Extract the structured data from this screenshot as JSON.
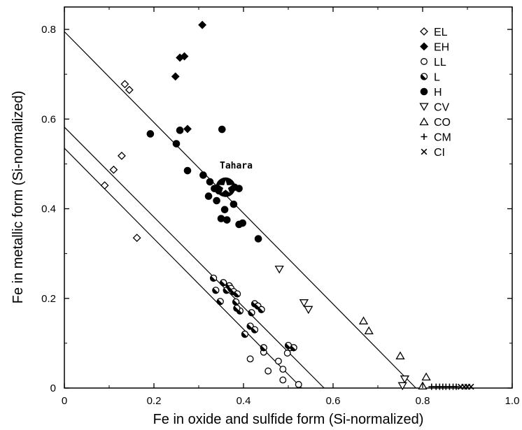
{
  "chart_data": {
    "type": "scatter",
    "xlabel": "Fe in oxide and sulfide form (Si-normalized)",
    "ylabel": "Fe in metallic form (Si-normalized)",
    "xlim": [
      0,
      1.0
    ],
    "ylim": [
      0,
      0.85
    ],
    "x_ticks": [
      0,
      0.2,
      0.4,
      0.6,
      0.8,
      1.0
    ],
    "x_tick_labels": [
      "0",
      "0.2",
      "0.4",
      "0.6",
      "0.8",
      "1.0"
    ],
    "y_ticks": [
      0,
      0.2,
      0.4,
      0.6,
      0.8
    ],
    "y_tick_labels": [
      "0",
      "0.2",
      "0.4",
      "0.6",
      "0.8"
    ],
    "grid": false,
    "legend_position": "top-right",
    "series": [
      {
        "name": "EL",
        "marker": "diamond-open",
        "points": [
          [
            0.135,
            0.678
          ],
          [
            0.145,
            0.665
          ],
          [
            0.128,
            0.518
          ],
          [
            0.11,
            0.487
          ],
          [
            0.09,
            0.452
          ],
          [
            0.162,
            0.335
          ]
        ]
      },
      {
        "name": "EH",
        "marker": "diamond-filled",
        "points": [
          [
            0.308,
            0.81
          ],
          [
            0.268,
            0.74
          ],
          [
            0.258,
            0.737
          ],
          [
            0.248,
            0.695
          ],
          [
            0.275,
            0.578
          ]
        ]
      },
      {
        "name": "LL",
        "marker": "circle-open",
        "points": [
          [
            0.415,
            0.065
          ],
          [
            0.445,
            0.08
          ],
          [
            0.455,
            0.038
          ],
          [
            0.478,
            0.06
          ],
          [
            0.488,
            0.042
          ],
          [
            0.498,
            0.078
          ],
          [
            0.488,
            0.018
          ],
          [
            0.523,
            0.008
          ],
          [
            0.505,
            0.09
          ]
        ]
      },
      {
        "name": "L",
        "marker": "circle-half",
        "points": [
          [
            0.333,
            0.245
          ],
          [
            0.338,
            0.218
          ],
          [
            0.348,
            0.193
          ],
          [
            0.355,
            0.235
          ],
          [
            0.362,
            0.218
          ],
          [
            0.368,
            0.228
          ],
          [
            0.372,
            0.222
          ],
          [
            0.378,
            0.215
          ],
          [
            0.383,
            0.192
          ],
          [
            0.386,
            0.21
          ],
          [
            0.392,
            0.172
          ],
          [
            0.385,
            0.178
          ],
          [
            0.403,
            0.12
          ],
          [
            0.415,
            0.138
          ],
          [
            0.425,
            0.13
          ],
          [
            0.418,
            0.168
          ],
          [
            0.425,
            0.188
          ],
          [
            0.432,
            0.183
          ],
          [
            0.44,
            0.175
          ],
          [
            0.445,
            0.09
          ],
          [
            0.5,
            0.095
          ],
          [
            0.512,
            0.09
          ]
        ]
      },
      {
        "name": "H",
        "marker": "circle-filled",
        "points": [
          [
            0.192,
            0.567
          ],
          [
            0.25,
            0.545
          ],
          [
            0.258,
            0.575
          ],
          [
            0.352,
            0.577
          ],
          [
            0.275,
            0.485
          ],
          [
            0.31,
            0.475
          ],
          [
            0.325,
            0.46
          ],
          [
            0.322,
            0.428
          ],
          [
            0.335,
            0.445
          ],
          [
            0.345,
            0.44
          ],
          [
            0.34,
            0.418
          ],
          [
            0.358,
            0.398
          ],
          [
            0.35,
            0.378
          ],
          [
            0.363,
            0.375
          ],
          [
            0.378,
            0.41
          ],
          [
            0.38,
            0.448
          ],
          [
            0.39,
            0.445
          ],
          [
            0.39,
            0.365
          ],
          [
            0.398,
            0.368
          ],
          [
            0.433,
            0.333
          ]
        ]
      },
      {
        "name": "CV",
        "marker": "triangle-down-open",
        "points": [
          [
            0.48,
            0.265
          ],
          [
            0.535,
            0.19
          ],
          [
            0.545,
            0.175
          ],
          [
            0.76,
            0.02
          ],
          [
            0.755,
            0.005
          ]
        ]
      },
      {
        "name": "CO",
        "marker": "triangle-up-open",
        "points": [
          [
            0.668,
            0.15
          ],
          [
            0.68,
            0.128
          ],
          [
            0.75,
            0.072
          ],
          [
            0.808,
            0.025
          ],
          [
            0.8,
            0.005
          ]
        ]
      },
      {
        "name": "CM",
        "marker": "plus",
        "points": [
          [
            0.82,
            0.003
          ],
          [
            0.83,
            0.003
          ],
          [
            0.838,
            0.003
          ],
          [
            0.845,
            0.003
          ],
          [
            0.852,
            0.003
          ],
          [
            0.86,
            0.003
          ],
          [
            0.868,
            0.003
          ],
          [
            0.875,
            0.003
          ]
        ]
      },
      {
        "name": "CI",
        "marker": "cross",
        "points": [
          [
            0.885,
            0.003
          ],
          [
            0.893,
            0.003
          ],
          [
            0.9,
            0.003
          ],
          [
            0.908,
            0.003
          ]
        ]
      }
    ],
    "lines": [
      {
        "from": [
          0,
          0.795
        ],
        "to": [
          0.785,
          0
        ]
      },
      {
        "from": [
          0,
          0.582
        ],
        "to": [
          0.58,
          0
        ]
      },
      {
        "from": [
          0,
          0.535
        ],
        "to": [
          0.53,
          0
        ]
      }
    ],
    "highlight": {
      "label": "Tahara",
      "point": [
        0.36,
        0.448
      ]
    }
  }
}
